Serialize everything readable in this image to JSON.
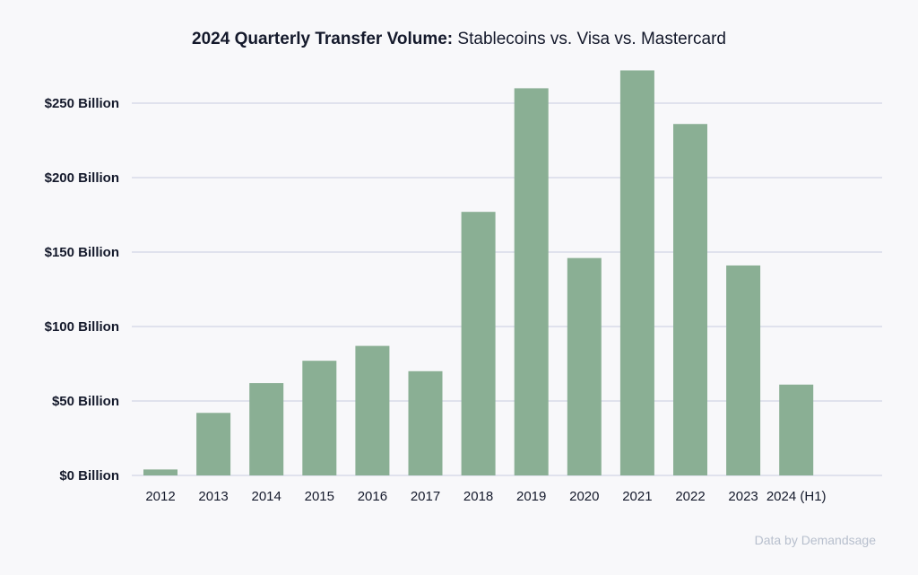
{
  "chart_data": {
    "type": "bar",
    "title": {
      "bold": "2024 Quarterly Transfer Volume:",
      "regular": " Stablecoins vs. Visa vs. Mastercard"
    },
    "categories": [
      "2012",
      "2013",
      "2014",
      "2015",
      "2016",
      "2017",
      "2018",
      "2019",
      "2020",
      "2021",
      "2022",
      "2023",
      "2024 (H1)"
    ],
    "values": [
      4,
      42,
      62,
      77,
      87,
      70,
      177,
      260,
      146,
      272,
      236,
      141,
      61
    ],
    "ylim": [
      0,
      250
    ],
    "yticks": [
      0,
      50,
      100,
      150,
      200,
      250
    ],
    "ytick_labels": [
      "$0 Billion",
      "$50 Billion",
      "$100 Billion",
      "$150 Billion",
      "$200 Billion",
      "$250 Billion"
    ],
    "xlabel": "",
    "ylabel": "",
    "grid": true,
    "legend": "none",
    "colors": {
      "bar": "#8aaf94",
      "grid": "#c9cbe0",
      "text": "#14192b",
      "background": "#f8f8fa"
    }
  },
  "footer": {
    "source": "Data by Demandsage"
  }
}
